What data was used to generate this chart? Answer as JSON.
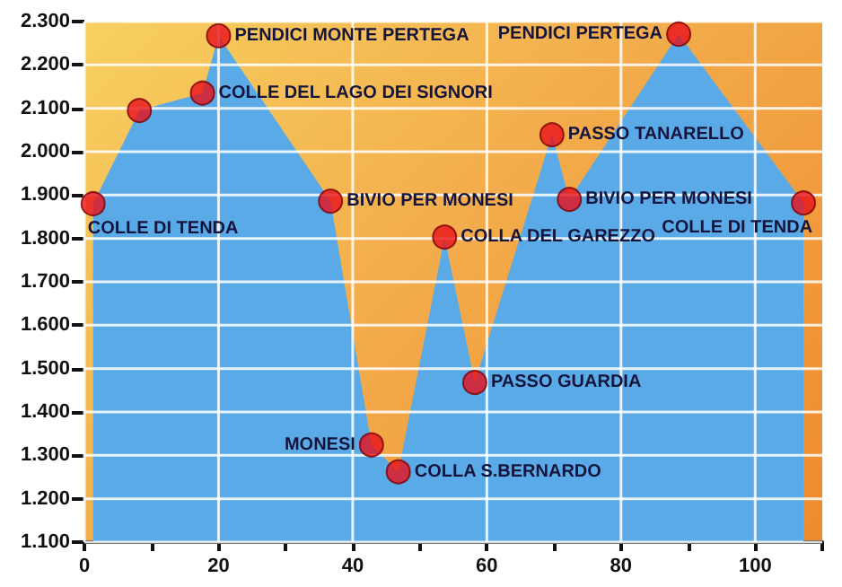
{
  "chart_data": {
    "type": "area",
    "xlim": [
      0,
      110
    ],
    "ylim": [
      1100,
      2300
    ],
    "xticks": [
      0,
      {
        "value": 10,
        "label": null
      },
      20,
      {
        "value": 30,
        "label": null
      },
      40,
      {
        "value": 50,
        "label": null
      },
      60,
      {
        "value": 70,
        "label": null
      },
      80,
      {
        "value": 90,
        "label": null
      },
      100,
      {
        "value": 110,
        "label": null
      }
    ],
    "yticks": [
      {
        "value": 1100,
        "label": "1.100"
      },
      {
        "value": 1200,
        "label": "1.200"
      },
      {
        "value": 1300,
        "label": "1.300"
      },
      {
        "value": 1400,
        "label": "1.400"
      },
      {
        "value": 1500,
        "label": "1.500"
      },
      {
        "value": 1600,
        "label": "1.600"
      },
      {
        "value": 1700,
        "label": "1.700"
      },
      {
        "value": 1800,
        "label": "1.800"
      },
      {
        "value": 1900,
        "label": "1.900"
      },
      {
        "value": 2000,
        "label": "2.000"
      },
      {
        "value": 2100,
        "label": "2.100"
      },
      {
        "value": 2200,
        "label": "2.200"
      },
      {
        "value": 2300,
        "label": "2.300"
      }
    ],
    "grid": true,
    "series": [
      {
        "color": "#5aaae8",
        "x": [
          1.3,
          8.2,
          17.6,
          20,
          36.7,
          42.8,
          46.8,
          53.7,
          58.2,
          69.7,
          72.3,
          88.6,
          107.2
        ],
        "values": [
          1880,
          2095,
          2135,
          2267,
          1886,
          1324,
          1262,
          1803,
          1468,
          2039,
          1890,
          2271,
          1882
        ]
      },
      {
        "type": "scatter",
        "marker": "circle",
        "color": "#e8101a",
        "x": [
          1.3,
          8.2,
          17.6,
          20,
          36.7,
          42.8,
          46.8,
          53.7,
          58.2,
          69.7,
          72.3,
          88.6,
          107.2
        ],
        "values": [
          1880,
          2095,
          2135,
          2267,
          1886,
          1324,
          1262,
          1803,
          1468,
          2039,
          1890,
          2271,
          1882
        ]
      }
    ],
    "annotations": [
      {
        "text": "COLLE DI TENDA",
        "x": 1.3,
        "y": 1880
      },
      {
        "text": "COLLE DEL LAGO DEI SIGNORI",
        "x": 17.6,
        "y": 2135
      },
      {
        "text": "PENDICI MONTE PERTEGA",
        "x": 20,
        "y": 2267
      },
      {
        "text": "BIVIO PER MONESI",
        "x": 36.7,
        "y": 1886
      },
      {
        "text": "MONESI",
        "x": 42.8,
        "y": 1324
      },
      {
        "text": "COLLA S.BERNARDO",
        "x": 46.8,
        "y": 1262
      },
      {
        "text": "COLLA DEL GAREZZO",
        "x": 53.7,
        "y": 1803
      },
      {
        "text": "PASSO GUARDIA",
        "x": 58.2,
        "y": 1468
      },
      {
        "text": "PASSO TANARELLO",
        "x": 69.7,
        "y": 2039
      },
      {
        "text": "BIVIO PER MONESI",
        "x": 72.3,
        "y": 1890
      },
      {
        "text": "PENDICI PERTEGA",
        "x": 88.6,
        "y": 2271
      },
      {
        "text": "COLLE DI TENDA",
        "x": 107.2,
        "y": 1882
      }
    ]
  }
}
